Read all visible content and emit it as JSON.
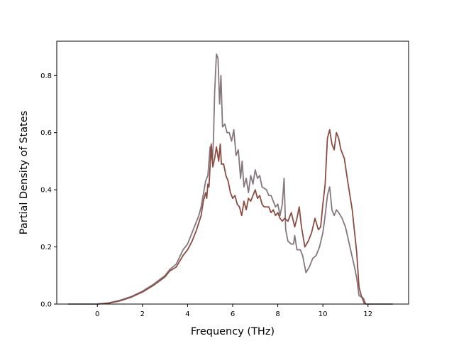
{
  "chart_data": {
    "type": "line",
    "title": "",
    "xlabel": "Frequency (THz)",
    "ylabel": "Partial Density of States",
    "xlim": [
      -1.8,
      13.8
    ],
    "ylim": [
      0.0,
      0.92
    ],
    "xticks": [
      0,
      2,
      4,
      6,
      8,
      10,
      12
    ],
    "yticks": [
      0.0,
      0.2,
      0.4,
      0.6,
      0.8
    ],
    "xtick_labels": [
      "0",
      "2",
      "4",
      "6",
      "8",
      "10",
      "12"
    ],
    "ytick_labels": [
      "0.0",
      "0.2",
      "0.4",
      "0.6",
      "0.8"
    ],
    "grid": false,
    "legend": "none",
    "series": [
      {
        "color": "#86777f",
        "points": [
          [
            -1.3,
            0.0
          ],
          [
            0.0,
            0.0
          ],
          [
            0.5,
            0.004
          ],
          [
            1.0,
            0.013
          ],
          [
            1.5,
            0.026
          ],
          [
            2.0,
            0.045
          ],
          [
            2.5,
            0.07
          ],
          [
            3.0,
            0.1
          ],
          [
            3.2,
            0.12
          ],
          [
            3.5,
            0.14
          ],
          [
            3.8,
            0.19
          ],
          [
            4.0,
            0.21
          ],
          [
            4.2,
            0.25
          ],
          [
            4.5,
            0.31
          ],
          [
            4.6,
            0.34
          ],
          [
            4.8,
            0.43
          ],
          [
            4.9,
            0.45
          ],
          [
            5.0,
            0.55
          ],
          [
            5.1,
            0.5
          ],
          [
            5.15,
            0.58
          ],
          [
            5.2,
            0.74
          ],
          [
            5.28,
            0.875
          ],
          [
            5.35,
            0.86
          ],
          [
            5.42,
            0.7
          ],
          [
            5.48,
            0.8
          ],
          [
            5.55,
            0.62
          ],
          [
            5.65,
            0.63
          ],
          [
            5.75,
            0.6
          ],
          [
            5.85,
            0.6
          ],
          [
            5.95,
            0.57
          ],
          [
            6.05,
            0.61
          ],
          [
            6.15,
            0.52
          ],
          [
            6.25,
            0.54
          ],
          [
            6.35,
            0.44
          ],
          [
            6.42,
            0.5
          ],
          [
            6.5,
            0.41
          ],
          [
            6.6,
            0.44
          ],
          [
            6.7,
            0.39
          ],
          [
            6.8,
            0.45
          ],
          [
            6.9,
            0.42
          ],
          [
            7.0,
            0.47
          ],
          [
            7.1,
            0.44
          ],
          [
            7.2,
            0.45
          ],
          [
            7.3,
            0.41
          ],
          [
            7.5,
            0.4
          ],
          [
            7.6,
            0.38
          ],
          [
            7.7,
            0.38
          ],
          [
            7.8,
            0.36
          ],
          [
            7.9,
            0.34
          ],
          [
            8.0,
            0.35
          ],
          [
            8.1,
            0.31
          ],
          [
            8.2,
            0.35
          ],
          [
            8.28,
            0.44
          ],
          [
            8.35,
            0.26
          ],
          [
            8.45,
            0.22
          ],
          [
            8.6,
            0.21
          ],
          [
            8.7,
            0.21
          ],
          [
            8.75,
            0.24
          ],
          [
            8.85,
            0.19
          ],
          [
            9.0,
            0.19
          ],
          [
            9.1,
            0.17
          ],
          [
            9.25,
            0.11
          ],
          [
            9.4,
            0.13
          ],
          [
            9.55,
            0.16
          ],
          [
            9.7,
            0.17
          ],
          [
            9.85,
            0.2
          ],
          [
            10.0,
            0.25
          ],
          [
            10.1,
            0.31
          ],
          [
            10.2,
            0.38
          ],
          [
            10.3,
            0.41
          ],
          [
            10.4,
            0.33
          ],
          [
            10.5,
            0.31
          ],
          [
            10.6,
            0.33
          ],
          [
            10.7,
            0.32
          ],
          [
            10.85,
            0.3
          ],
          [
            11.0,
            0.27
          ],
          [
            11.2,
            0.2
          ],
          [
            11.4,
            0.13
          ],
          [
            11.5,
            0.09
          ],
          [
            11.6,
            0.03
          ],
          [
            11.8,
            0.02
          ],
          [
            11.9,
            0.0
          ],
          [
            13.1,
            0.0
          ]
        ]
      },
      {
        "color": "#8b4c42",
        "points": [
          [
            0.0,
            0.0
          ],
          [
            0.5,
            0.003
          ],
          [
            1.0,
            0.011
          ],
          [
            1.5,
            0.024
          ],
          [
            2.0,
            0.042
          ],
          [
            2.5,
            0.066
          ],
          [
            3.0,
            0.095
          ],
          [
            3.2,
            0.115
          ],
          [
            3.5,
            0.13
          ],
          [
            3.8,
            0.17
          ],
          [
            4.0,
            0.19
          ],
          [
            4.2,
            0.22
          ],
          [
            4.4,
            0.26
          ],
          [
            4.6,
            0.31
          ],
          [
            4.7,
            0.36
          ],
          [
            4.8,
            0.39
          ],
          [
            4.85,
            0.37
          ],
          [
            4.9,
            0.42
          ],
          [
            4.95,
            0.41
          ],
          [
            5.05,
            0.56
          ],
          [
            5.12,
            0.48
          ],
          [
            5.2,
            0.51
          ],
          [
            5.28,
            0.55
          ],
          [
            5.38,
            0.5
          ],
          [
            5.45,
            0.56
          ],
          [
            5.5,
            0.49
          ],
          [
            5.6,
            0.49
          ],
          [
            5.7,
            0.45
          ],
          [
            5.8,
            0.43
          ],
          [
            5.9,
            0.39
          ],
          [
            6.0,
            0.37
          ],
          [
            6.1,
            0.38
          ],
          [
            6.2,
            0.35
          ],
          [
            6.3,
            0.34
          ],
          [
            6.4,
            0.31
          ],
          [
            6.5,
            0.36
          ],
          [
            6.6,
            0.33
          ],
          [
            6.7,
            0.37
          ],
          [
            6.8,
            0.36
          ],
          [
            6.9,
            0.38
          ],
          [
            7.0,
            0.4
          ],
          [
            7.1,
            0.37
          ],
          [
            7.2,
            0.38
          ],
          [
            7.3,
            0.35
          ],
          [
            7.4,
            0.34
          ],
          [
            7.6,
            0.34
          ],
          [
            7.7,
            0.32
          ],
          [
            7.8,
            0.33
          ],
          [
            7.9,
            0.31
          ],
          [
            8.0,
            0.32
          ],
          [
            8.1,
            0.3
          ],
          [
            8.2,
            0.29
          ],
          [
            8.3,
            0.3
          ],
          [
            8.45,
            0.29
          ],
          [
            8.6,
            0.32
          ],
          [
            8.75,
            0.27
          ],
          [
            8.85,
            0.3
          ],
          [
            8.95,
            0.34
          ],
          [
            9.05,
            0.27
          ],
          [
            9.2,
            0.2
          ],
          [
            9.35,
            0.22
          ],
          [
            9.5,
            0.25
          ],
          [
            9.65,
            0.3
          ],
          [
            9.8,
            0.26
          ],
          [
            9.9,
            0.27
          ],
          [
            10.0,
            0.35
          ],
          [
            10.1,
            0.42
          ],
          [
            10.2,
            0.58
          ],
          [
            10.3,
            0.61
          ],
          [
            10.4,
            0.56
          ],
          [
            10.5,
            0.54
          ],
          [
            10.6,
            0.6
          ],
          [
            10.7,
            0.58
          ],
          [
            10.8,
            0.54
          ],
          [
            10.95,
            0.51
          ],
          [
            11.1,
            0.43
          ],
          [
            11.3,
            0.33
          ],
          [
            11.5,
            0.18
          ],
          [
            11.6,
            0.06
          ],
          [
            11.7,
            0.03
          ],
          [
            11.85,
            0.0
          ]
        ]
      }
    ]
  }
}
